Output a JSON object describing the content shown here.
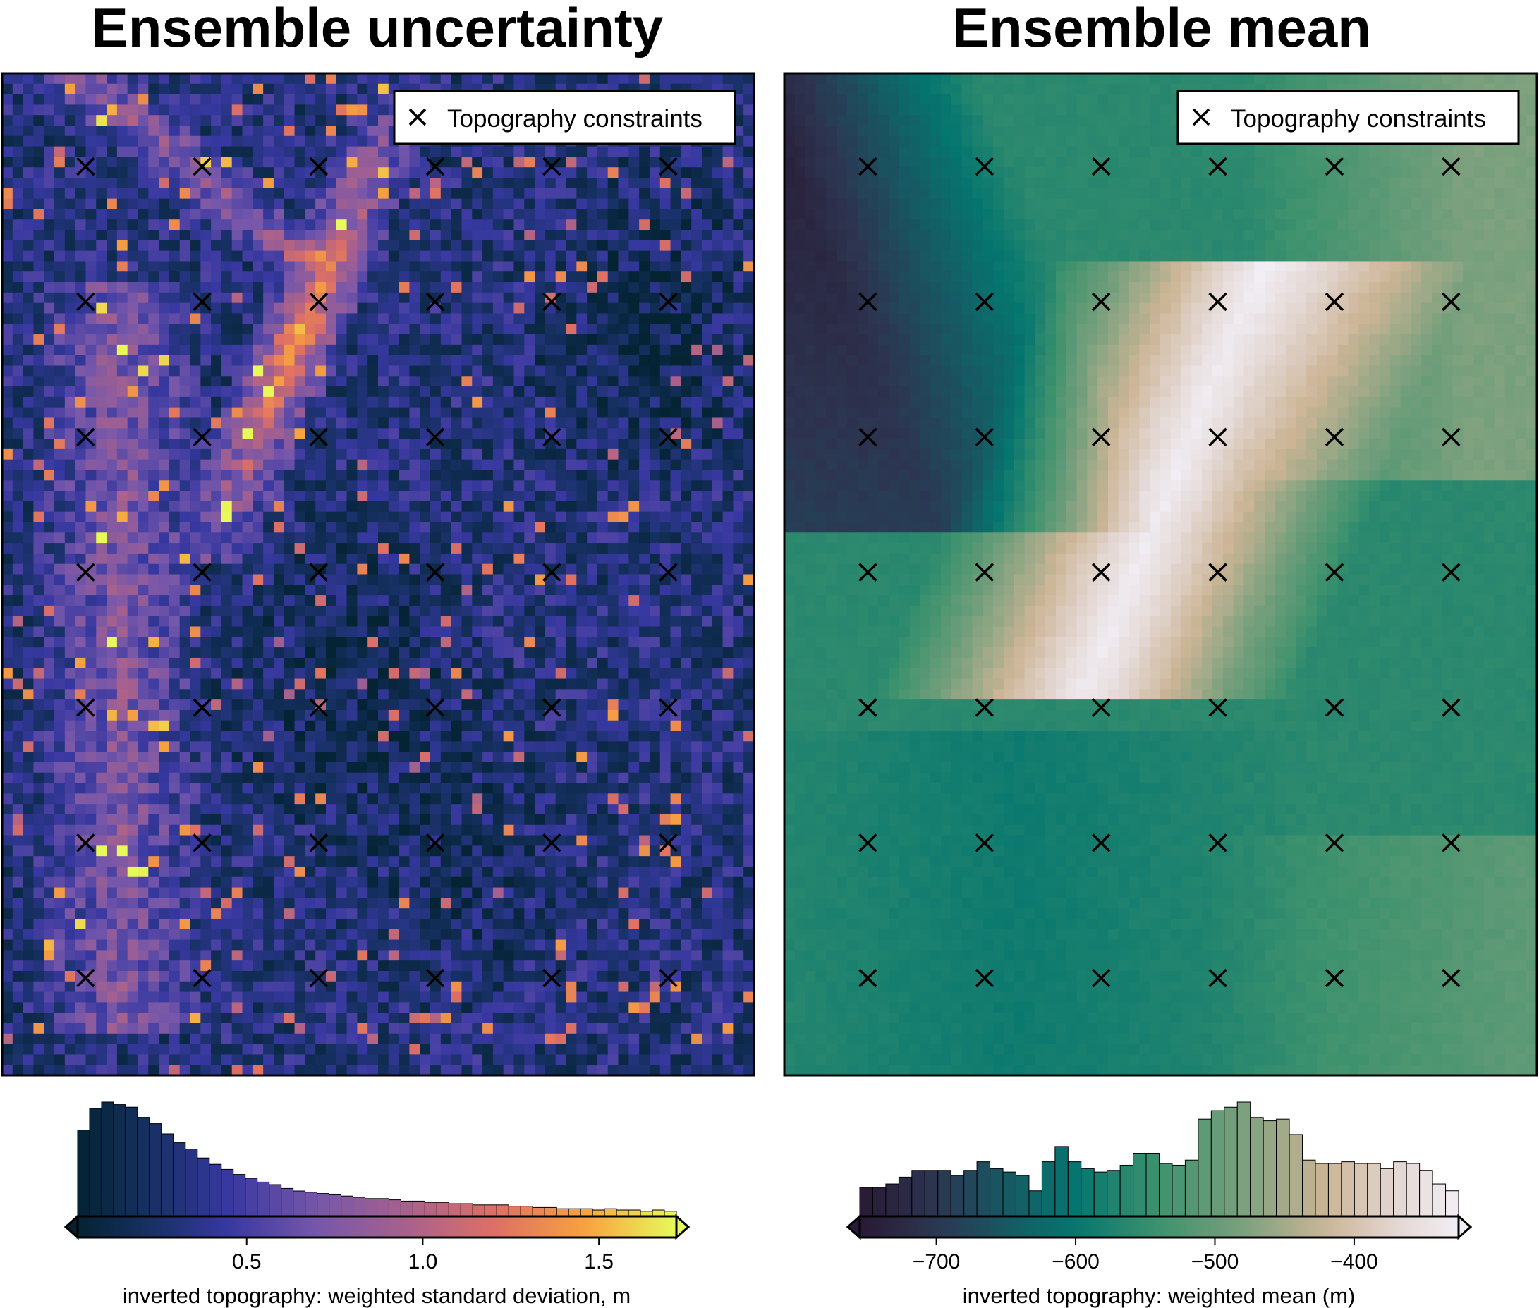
{
  "chart_data": [
    {
      "type": "heatmap",
      "title": "Ensemble uncertainty",
      "legend": {
        "label": "Topography constraints",
        "marker": "x",
        "placement": "top-right"
      },
      "colormap": "thermal",
      "colorbar": {
        "label": "inverted topography: weighted standard deviation, m",
        "range": [
          0.02,
          1.72
        ],
        "ticks": [
          0.5,
          1.0,
          1.5
        ],
        "tick_labels": [
          "0.5",
          "1.0",
          "1.5"
        ],
        "histogram_counts": [
          68,
          85,
          90,
          88,
          86,
          78,
          73,
          65,
          58,
          53,
          46,
          41,
          37,
          33,
          30,
          27,
          25,
          22,
          20,
          19,
          18,
          17,
          16,
          15,
          14,
          14,
          13,
          12,
          12,
          11,
          11,
          10,
          10,
          9,
          9,
          9,
          8,
          8,
          7,
          7,
          6,
          6,
          6,
          5,
          6,
          5,
          5,
          4,
          5,
          4
        ]
      },
      "constraint_grid": {
        "columns": 6,
        "rows": 7
      },
      "features": {
        "background": 0.3,
        "high_uncertainty_band": "from top-center running down-left, highest values near the upper center",
        "low_uncertainty_areas": [
          "upper right",
          "center",
          "lower center"
        ]
      }
    },
    {
      "type": "heatmap",
      "title": "Ensemble mean",
      "legend": {
        "label": "Topography constraints",
        "marker": "x",
        "placement": "top-right"
      },
      "colormap": "topography (dark purple - teal - green - tan - white)",
      "colorbar": {
        "label": "inverted topography: weighted mean (m)",
        "range": [
          -755,
          -325
        ],
        "ticks": [
          -700,
          -600,
          -500,
          -400
        ],
        "tick_labels": [
          "−700",
          "−600",
          "−500",
          "−400"
        ],
        "histogram_counts": [
          17,
          17,
          19,
          23,
          27,
          27,
          27,
          24,
          27,
          32,
          28,
          26,
          24,
          15,
          32,
          41,
          32,
          28,
          26,
          27,
          30,
          37,
          37,
          31,
          30,
          33,
          57,
          62,
          64,
          67,
          58,
          56,
          57,
          48,
          33,
          31,
          31,
          32,
          31,
          31,
          28,
          32,
          31,
          27,
          19,
          15
        ],
        "histogram_first_bar_value": -755
      },
      "constraint_grid": {
        "columns": 6,
        "rows": 7
      },
      "features": {
        "low_region": "upper left (dark purple, about -740 m)",
        "high_region": "white ridge across the upper center (about -330 m)",
        "mid_region": "teal and green lowlands to the south (about -550 to -600 m)"
      }
    }
  ]
}
